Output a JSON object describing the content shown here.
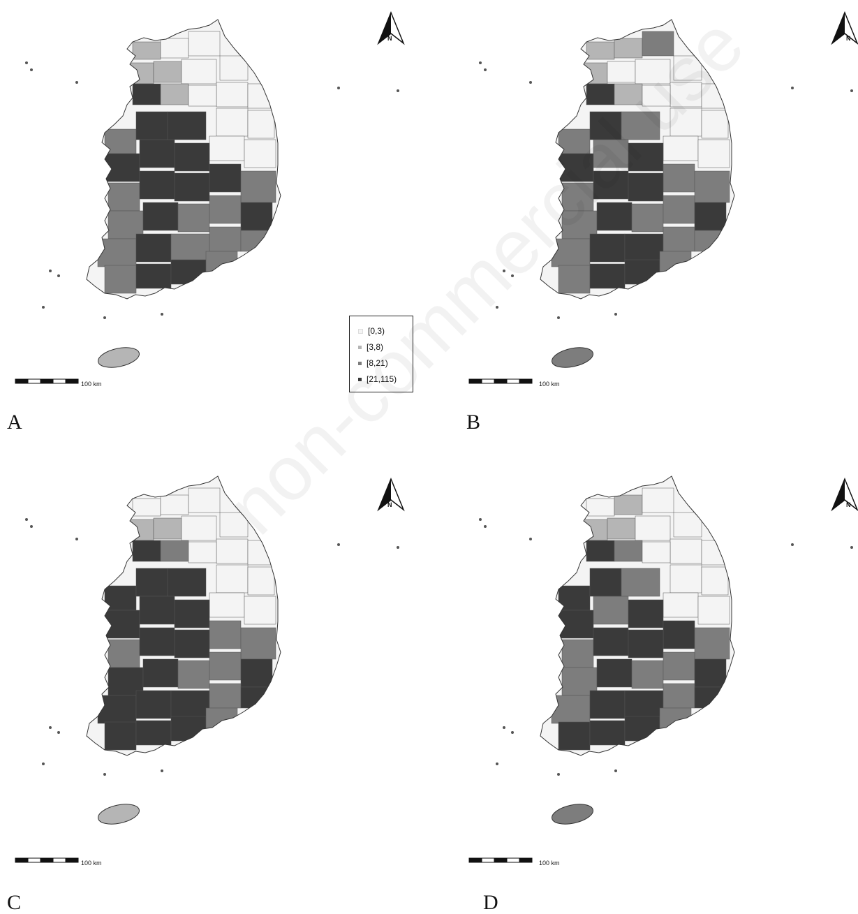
{
  "legend": {
    "items": [
      {
        "label": "[0,3)",
        "color": "#f4f4f4"
      },
      {
        "label": "[3,8)",
        "color": "#b5b5b5"
      },
      {
        "label": "[8,21)",
        "color": "#7d7d7d"
      },
      {
        "label": "[21,115)",
        "color": "#3a3a3a"
      }
    ]
  },
  "panels": [
    {
      "letter": "A",
      "scale_label": "100 km",
      "north_label": "N",
      "jeju_color": "#b5b5b5"
    },
    {
      "letter": "B",
      "scale_label": "100 km",
      "north_label": "N",
      "jeju_color": "#7d7d7d"
    },
    {
      "letter": "C",
      "scale_label": "100 km",
      "north_label": "N",
      "jeju_color": "#b5b5b5"
    },
    {
      "letter": "D",
      "scale_label": "100 km",
      "north_label": "N",
      "jeju_color": "#7d7d7d"
    }
  ],
  "watermark": "non-commercial use"
}
